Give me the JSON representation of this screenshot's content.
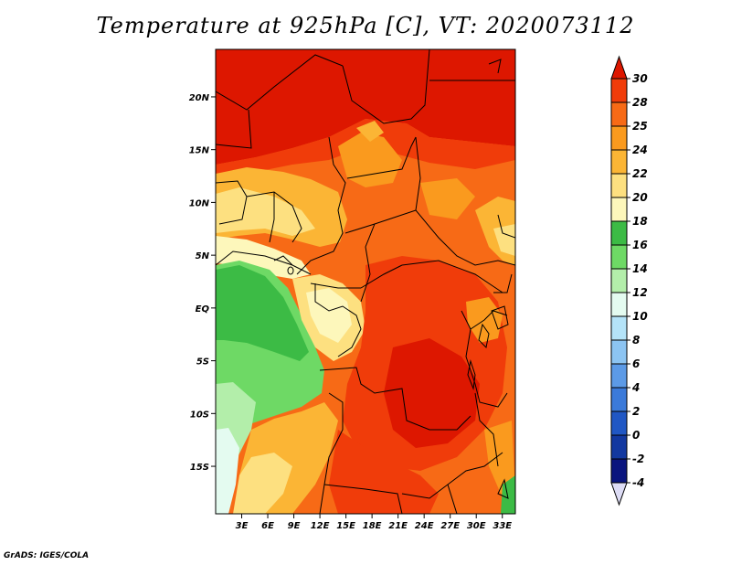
{
  "title": "Temperature at 925hPa [C], VT: 2020073112",
  "credit": "GrADS: IGES/COLA",
  "map": {
    "lon_range": [
      0,
      34.5
    ],
    "lat_range": [
      -19.5,
      24.5
    ],
    "lat_ticks": [
      {
        "value": 20,
        "label": "20N"
      },
      {
        "value": 15,
        "label": "15N"
      },
      {
        "value": 10,
        "label": "10N"
      },
      {
        "value": 5,
        "label": "5N"
      },
      {
        "value": 0,
        "label": "EQ"
      },
      {
        "value": -5,
        "label": "5S"
      },
      {
        "value": -10,
        "label": "10S"
      },
      {
        "value": -15,
        "label": "15S"
      }
    ],
    "lon_ticks": [
      {
        "value": 3,
        "label": "3E"
      },
      {
        "value": 6,
        "label": "6E"
      },
      {
        "value": 9,
        "label": "9E"
      },
      {
        "value": 12,
        "label": "12E"
      },
      {
        "value": 15,
        "label": "15E"
      },
      {
        "value": 18,
        "label": "18E"
      },
      {
        "value": 21,
        "label": "21E"
      },
      {
        "value": 24,
        "label": "24E"
      },
      {
        "value": 27,
        "label": "27E"
      },
      {
        "value": 30,
        "label": "30E"
      },
      {
        "value": 33,
        "label": "33E"
      }
    ]
  },
  "colorbar": {
    "levels": [
      {
        "color": "#dd1700",
        "label": "30"
      },
      {
        "color": "#f03c0a",
        "label": "28"
      },
      {
        "color": "#f76a16",
        "label": "25"
      },
      {
        "color": "#fa9a1e",
        "label": "24"
      },
      {
        "color": "#fbb535",
        "label": "22"
      },
      {
        "color": "#fde080",
        "label": "20"
      },
      {
        "color": "#fdf7bb",
        "label": "18"
      },
      {
        "color": "#3cbb45",
        "label": "16"
      },
      {
        "color": "#6ed965",
        "label": "14"
      },
      {
        "color": "#b3eeaa",
        "label": "12"
      },
      {
        "color": "#e4fbf0",
        "label": "10"
      },
      {
        "color": "#b4e3f8",
        "label": "8"
      },
      {
        "color": "#8cc4f2",
        "label": "6"
      },
      {
        "color": "#5c9ae6",
        "label": "4"
      },
      {
        "color": "#3b7ad9",
        "label": "2"
      },
      {
        "color": "#2057c4",
        "label": "0"
      },
      {
        "color": "#1238a0",
        "label": "-2"
      },
      {
        "color": "#0a157e",
        "label": "-4"
      },
      {
        "color": "#dddcf5",
        "label": ""
      }
    ]
  }
}
